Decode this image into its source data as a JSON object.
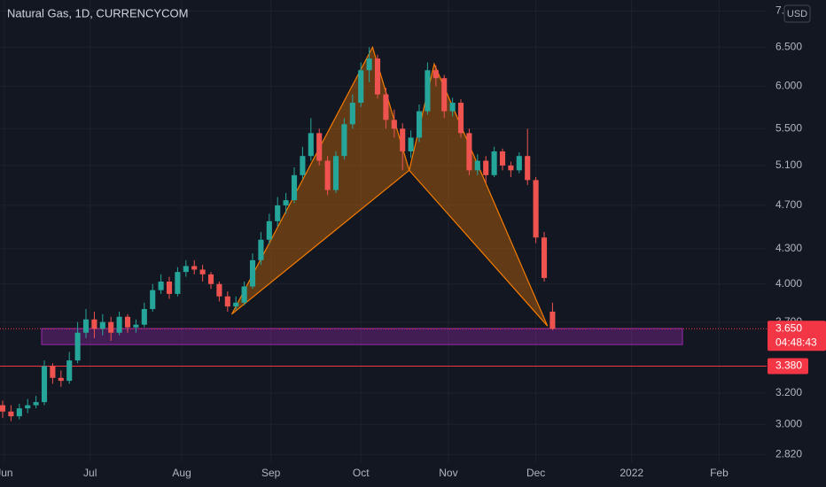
{
  "chart_data": {
    "type": "candlestick",
    "title": "Natural Gas, 1D, CURRENCYCOM",
    "currency": "USD",
    "log_scale": true,
    "grid": true,
    "up_color": "#26a69a",
    "down_color": "#ef5350",
    "open": [
      3.12,
      3.08,
      3.05,
      3.1,
      3.12,
      3.14,
      3.38,
      3.3,
      3.28,
      3.42,
      3.62,
      3.72,
      3.65,
      3.7,
      3.62,
      3.74,
      3.66,
      3.68,
      3.8,
      3.95,
      4.02,
      3.92,
      4.1,
      4.15,
      4.12,
      4.08,
      4.0,
      3.9,
      3.82,
      3.85,
      3.98,
      4.2,
      4.38,
      4.55,
      4.7,
      4.75,
      5.0,
      5.2,
      5.45,
      5.15,
      4.85,
      5.2,
      5.55,
      5.8,
      6.2,
      6.35,
      5.9,
      5.6,
      5.5,
      5.25,
      5.4,
      5.7,
      6.2,
      6.1,
      5.7,
      5.8,
      5.45,
      5.05,
      5.15,
      5.0,
      5.25,
      5.1,
      5.05,
      5.2,
      4.95,
      4.4,
      3.78
    ],
    "high": [
      3.15,
      3.12,
      3.13,
      3.16,
      3.18,
      3.42,
      3.4,
      3.35,
      3.48,
      3.7,
      3.8,
      3.78,
      3.76,
      3.74,
      3.78,
      3.76,
      3.72,
      3.85,
      4.0,
      4.08,
      4.06,
      4.14,
      4.2,
      4.2,
      4.16,
      4.1,
      4.02,
      3.94,
      3.9,
      4.02,
      4.26,
      4.45,
      4.62,
      4.78,
      4.82,
      5.08,
      5.3,
      5.62,
      5.5,
      5.2,
      5.25,
      5.62,
      5.9,
      6.3,
      6.5,
      6.4,
      5.98,
      5.72,
      5.56,
      5.48,
      5.78,
      6.3,
      6.26,
      6.14,
      5.86,
      5.84,
      5.5,
      5.22,
      5.2,
      5.3,
      5.28,
      5.14,
      5.24,
      5.5,
      4.98,
      4.45,
      3.85
    ],
    "low": [
      3.04,
      3.02,
      3.03,
      3.07,
      3.1,
      3.12,
      3.26,
      3.24,
      3.26,
      3.4,
      3.58,
      3.58,
      3.6,
      3.56,
      3.6,
      3.62,
      3.62,
      3.66,
      3.78,
      3.92,
      3.88,
      3.9,
      4.06,
      4.08,
      4.02,
      3.96,
      3.86,
      3.78,
      3.79,
      3.83,
      3.96,
      4.16,
      4.34,
      4.5,
      4.62,
      4.72,
      4.96,
      5.15,
      5.1,
      4.8,
      4.82,
      5.16,
      5.5,
      5.75,
      6.05,
      5.85,
      5.5,
      5.4,
      5.05,
      5.18,
      5.35,
      5.66,
      6.0,
      5.62,
      5.64,
      5.4,
      5.0,
      5.0,
      4.92,
      4.98,
      5.05,
      4.98,
      5.02,
      4.9,
      4.35,
      4.02,
      3.64
    ],
    "close": [
      3.08,
      3.05,
      3.1,
      3.12,
      3.14,
      3.38,
      3.3,
      3.28,
      3.42,
      3.62,
      3.72,
      3.65,
      3.7,
      3.62,
      3.74,
      3.66,
      3.68,
      3.8,
      3.95,
      4.02,
      3.92,
      4.1,
      4.15,
      4.12,
      4.08,
      4.0,
      3.9,
      3.82,
      3.85,
      3.98,
      4.2,
      4.38,
      4.55,
      4.7,
      4.75,
      5.0,
      5.2,
      5.45,
      5.15,
      4.85,
      5.2,
      5.55,
      5.8,
      6.2,
      6.35,
      5.9,
      5.6,
      5.5,
      5.25,
      5.4,
      5.7,
      6.2,
      6.1,
      5.7,
      5.8,
      5.45,
      5.05,
      5.15,
      5.0,
      5.25,
      5.1,
      5.05,
      5.2,
      4.95,
      4.4,
      4.05,
      3.65
    ],
    "xlim": [
      -0.32,
      91.7
    ],
    "xticks": [
      {
        "value": 0.2,
        "label": "Jun"
      },
      {
        "value": 10.5,
        "label": "Jul"
      },
      {
        "value": 21.5,
        "label": "Aug"
      },
      {
        "value": 32.2,
        "label": "Sep"
      },
      {
        "value": 43,
        "label": "Oct"
      },
      {
        "value": 53.5,
        "label": "Nov"
      },
      {
        "value": 64,
        "label": "Dec"
      },
      {
        "value": 75.5,
        "label": "2022"
      },
      {
        "value": 86,
        "label": "Feb"
      }
    ],
    "ylim": [
      2.776,
      7.16
    ],
    "yticks": [
      {
        "value": 7,
        "label": "7.000"
      },
      {
        "value": 6.5,
        "label": "6.500"
      },
      {
        "value": 6,
        "label": "6.000"
      },
      {
        "value": 5.5,
        "label": "5.500"
      },
      {
        "value": 5.1,
        "label": "5.100"
      },
      {
        "value": 4.7,
        "label": "4.700"
      },
      {
        "value": 4.3,
        "label": "4.300"
      },
      {
        "value": 4,
        "label": "4.000"
      },
      {
        "value": 3.7,
        "label": "3.700"
      },
      {
        "value": 3.2,
        "label": "3.200"
      },
      {
        "value": 3,
        "label": "3.000"
      },
      {
        "value": 2.82,
        "label": "2.820"
      }
    ],
    "pattern": {
      "x": [
        27.5,
        44.4,
        48.8,
        51.8,
        65.4
      ],
      "y": [
        3.76,
        6.5,
        5.05,
        6.28,
        3.67
      ],
      "color": "#f57c00"
    },
    "zone": {
      "x": [
        4.68,
        81.6
      ],
      "y": [
        3.533,
        3.651
      ],
      "color": "#9c27b0"
    },
    "last_price": {
      "value": 3.65,
      "label": "3.650",
      "color": "#f23645"
    },
    "countdown": "04:48:43",
    "support": {
      "value": 3.38,
      "label": "3.380",
      "color": "#f23645"
    }
  }
}
